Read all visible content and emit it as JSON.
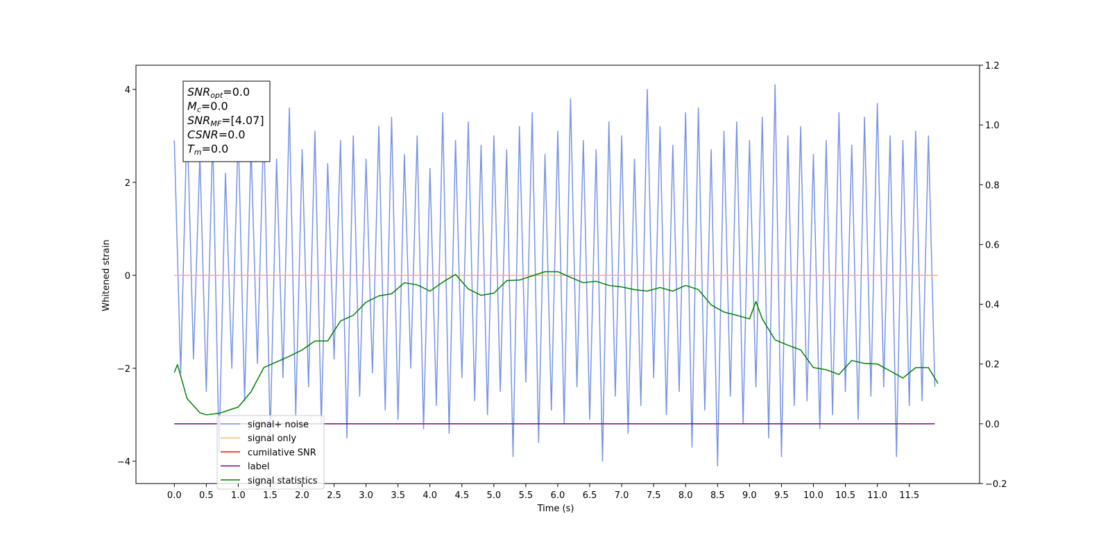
{
  "chart_data": {
    "type": "line",
    "xlabel": "Time (s)",
    "ylabel": "Whitened strain",
    "xlim": [
      -0.6,
      12.6
    ],
    "xticks": [
      {
        "value": 0,
        "label": "0.0"
      },
      {
        "value": 0.5,
        "label": "0.5"
      },
      {
        "value": 1,
        "label": "1.0"
      },
      {
        "value": 1.5,
        "label": "1.5"
      },
      {
        "value": 2,
        "label": "2.0"
      },
      {
        "value": 2.5,
        "label": "2.5"
      },
      {
        "value": 3,
        "label": "3.0"
      },
      {
        "value": 3.5,
        "label": "3.5"
      },
      {
        "value": 4,
        "label": "4.0"
      },
      {
        "value": 4.5,
        "label": "4.5"
      },
      {
        "value": 5,
        "label": "5.0"
      },
      {
        "value": 5.5,
        "label": "5.5"
      },
      {
        "value": 6,
        "label": "6.0"
      },
      {
        "value": 6.5,
        "label": "6.5"
      },
      {
        "value": 7,
        "label": "7.0"
      },
      {
        "value": 7.5,
        "label": "7.5"
      },
      {
        "value": 8,
        "label": "8.0"
      },
      {
        "value": 8.5,
        "label": "8.5"
      },
      {
        "value": 9,
        "label": "9.0"
      },
      {
        "value": 9.5,
        "label": "9.5"
      },
      {
        "value": 10,
        "label": "10.0"
      },
      {
        "value": 10.5,
        "label": "10.5"
      },
      {
        "value": 11,
        "label": "11.0"
      },
      {
        "value": 11.5,
        "label": "11.5"
      }
    ],
    "ylim": [
      -4.48,
      4.52
    ],
    "yticks": [
      {
        "value": -4,
        "label": "−4"
      },
      {
        "value": -2,
        "label": "−2"
      },
      0,
      2,
      4
    ],
    "y2lim": [
      -0.2,
      1.2
    ],
    "y2ticks": [
      {
        "value": -0.2,
        "label": "−0.2"
      },
      {
        "value": 0,
        "label": "0.0"
      },
      {
        "value": 0.2,
        "label": "0.2"
      },
      {
        "value": 0.4,
        "label": "0.4"
      },
      {
        "value": 0.6,
        "label": "0.6"
      },
      {
        "value": 0.8,
        "label": "0.8"
      },
      {
        "value": 1,
        "label": "1.0"
      },
      {
        "value": 1.2,
        "label": "1.2"
      }
    ],
    "annotation_lines": [
      {
        "symbol": "SNR",
        "subscript": "opt",
        "text": "=0.0"
      },
      {
        "symbol": "M",
        "subscript": "c",
        "text": "=0.0"
      },
      {
        "symbol": "SNR",
        "subscript": "MF",
        "text": "=[4.07]"
      },
      {
        "symbol": "CSNR",
        "text": "=0.0"
      },
      {
        "symbol": "T",
        "subscript": "m",
        "text": "=0.0"
      }
    ],
    "series": [
      {
        "name": "signal+ noise",
        "color": "#7793e6",
        "x": [
          0.0,
          0.1,
          0.2,
          0.3,
          0.4,
          0.5,
          0.6,
          0.7,
          0.8,
          0.9,
          1.0,
          1.1,
          1.2,
          1.3,
          1.4,
          1.5,
          1.6,
          1.7,
          1.8,
          1.9,
          2.0,
          2.1,
          2.2,
          2.3,
          2.4,
          2.5,
          2.6,
          2.7,
          2.8,
          2.9,
          3.0,
          3.1,
          3.2,
          3.3,
          3.4,
          3.5,
          3.6,
          3.7,
          3.8,
          3.9,
          4.0,
          4.1,
          4.2,
          4.3,
          4.4,
          4.5,
          4.6,
          4.7,
          4.8,
          4.9,
          5.0,
          5.1,
          5.2,
          5.3,
          5.4,
          5.5,
          5.6,
          5.7,
          5.8,
          5.9,
          6.0,
          6.1,
          6.2,
          6.3,
          6.4,
          6.5,
          6.6,
          6.7,
          6.8,
          6.9,
          7.0,
          7.1,
          7.2,
          7.3,
          7.4,
          7.5,
          7.6,
          7.7,
          7.8,
          7.9,
          8.0,
          8.1,
          8.2,
          8.3,
          8.4,
          8.5,
          8.6,
          8.7,
          8.8,
          8.9,
          9.0,
          9.1,
          9.2,
          9.3,
          9.4,
          9.5,
          9.6,
          9.7,
          9.8,
          9.9,
          10.0,
          10.1,
          10.2,
          10.3,
          10.4,
          10.5,
          10.6,
          10.7,
          10.8,
          10.9,
          11.0,
          11.1,
          11.2,
          11.3,
          11.4,
          11.5,
          11.6,
          11.7,
          11.8,
          11.9
        ],
        "values": [
          2.9,
          -2.1,
          3.4,
          -1.8,
          2.6,
          -2.5,
          3.0,
          -3.8,
          2.2,
          -2.0,
          3.1,
          -2.7,
          2.8,
          -1.9,
          3.3,
          -3.5,
          2.5,
          -2.2,
          3.6,
          -3.0,
          2.7,
          -2.4,
          3.1,
          -3.2,
          2.4,
          -1.8,
          2.9,
          -3.5,
          3.0,
          -2.6,
          2.5,
          -2.1,
          3.2,
          -2.9,
          3.4,
          -3.1,
          2.6,
          -2.0,
          3.0,
          -3.3,
          2.3,
          -2.8,
          3.5,
          -3.4,
          2.9,
          -2.2,
          3.3,
          -2.7,
          2.8,
          -3.0,
          3.0,
          -2.5,
          2.7,
          -3.9,
          3.2,
          -2.3,
          3.5,
          -3.6,
          2.6,
          -2.9,
          3.1,
          -3.2,
          3.8,
          -2.4,
          2.9,
          -3.1,
          2.7,
          -4.0,
          3.3,
          -2.6,
          3.0,
          -3.4,
          2.5,
          -2.8,
          4.0,
          -2.2,
          3.2,
          -3.0,
          2.8,
          -2.5,
          3.5,
          -3.7,
          3.6,
          -2.9,
          2.7,
          -4.1,
          3.1,
          -2.6,
          3.3,
          -3.2,
          2.9,
          -2.4,
          3.4,
          -3.5,
          4.1,
          -3.9,
          3.0,
          -2.8,
          3.2,
          -2.7,
          2.6,
          -3.3,
          2.9,
          -3.0,
          3.5,
          -2.5,
          2.8,
          -3.1,
          3.4,
          -2.6,
          3.7,
          -2.4,
          3.0,
          -3.9,
          2.9,
          -2.8,
          3.1,
          -2.7,
          3.0,
          -2.4
        ]
      },
      {
        "name": "signal only",
        "color": "#f5b570",
        "x": [
          0,
          11.95
        ],
        "values": [
          0,
          0
        ]
      },
      {
        "name": "cumilative SNR",
        "color": "#ff0000"
      },
      {
        "name": "label",
        "color": "#800080",
        "axis": "y2",
        "x": [
          0,
          11.9
        ],
        "values": [
          0,
          0
        ]
      },
      {
        "name": "signal statistics",
        "color": "#008000",
        "axis": "y2",
        "x": [
          0.0,
          0.05,
          0.2,
          0.4,
          0.5,
          0.7,
          0.9,
          1.0,
          1.2,
          1.4,
          1.6,
          1.8,
          2.0,
          2.2,
          2.4,
          2.6,
          2.8,
          3.0,
          3.2,
          3.4,
          3.6,
          3.8,
          4.0,
          4.2,
          4.4,
          4.6,
          4.8,
          5.0,
          5.2,
          5.4,
          5.6,
          5.8,
          6.0,
          6.2,
          6.4,
          6.6,
          6.8,
          7.0,
          7.2,
          7.4,
          7.6,
          7.8,
          8.0,
          8.2,
          8.4,
          8.6,
          8.8,
          9.0,
          9.1,
          9.2,
          9.4,
          9.6,
          9.8,
          10.0,
          10.2,
          10.4,
          10.6,
          10.8,
          11.0,
          11.2,
          11.4,
          11.6,
          11.8,
          11.95
        ],
        "values": [
          0.172,
          0.198,
          0.084,
          0.037,
          0.03,
          0.035,
          0.049,
          0.056,
          0.107,
          0.188,
          0.207,
          0.226,
          0.247,
          0.277,
          0.277,
          0.344,
          0.363,
          0.407,
          0.428,
          0.435,
          0.472,
          0.465,
          0.444,
          0.474,
          0.5,
          0.451,
          0.43,
          0.437,
          0.479,
          0.481,
          0.495,
          0.509,
          0.509,
          0.49,
          0.472,
          0.477,
          0.463,
          0.458,
          0.449,
          0.444,
          0.456,
          0.444,
          0.463,
          0.449,
          0.398,
          0.374,
          0.363,
          0.351,
          0.409,
          0.351,
          0.281,
          0.263,
          0.247,
          0.188,
          0.181,
          0.165,
          0.212,
          0.202,
          0.2,
          0.177,
          0.153,
          0.188,
          0.188,
          0.135
        ]
      }
    ]
  }
}
